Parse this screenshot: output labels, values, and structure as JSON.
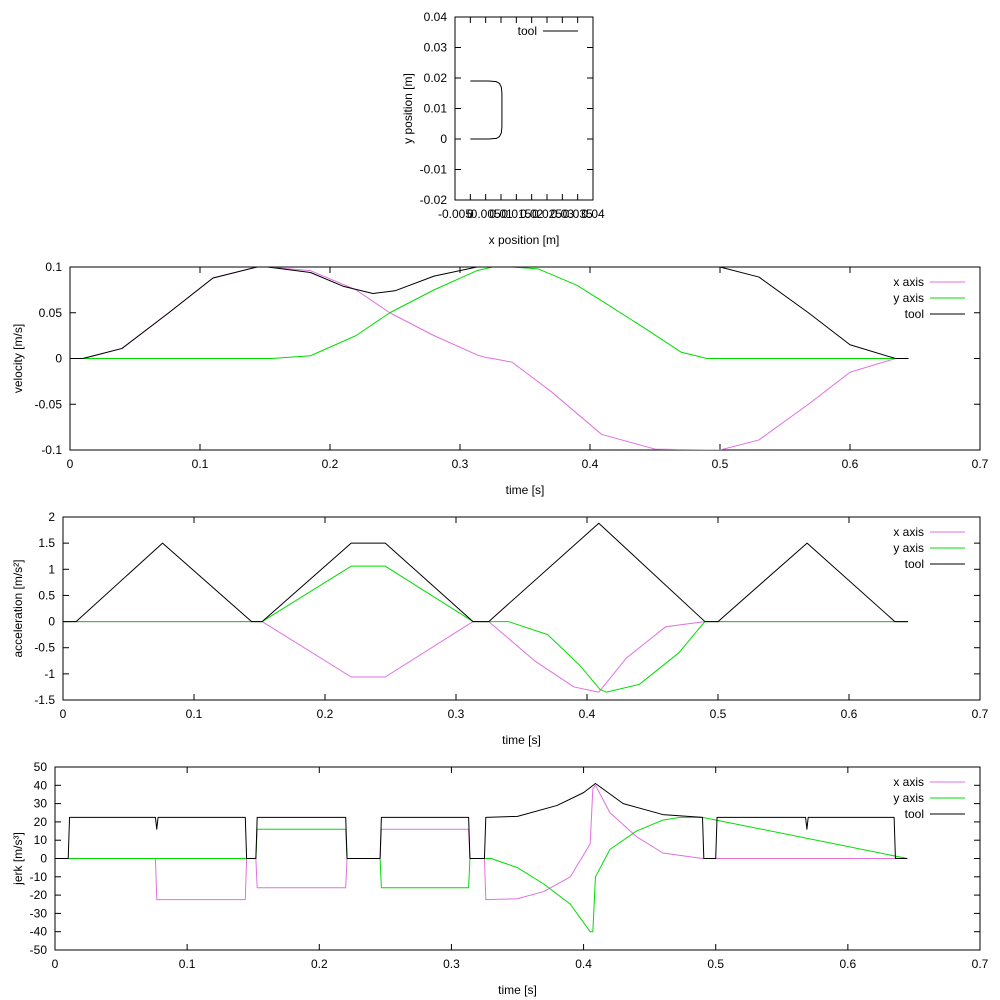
{
  "chart_data": [
    {
      "type": "line",
      "xlabel": "x position [m]",
      "ylabel": "y position [m]",
      "xlim": [
        -0.005,
        0.04
      ],
      "ylim": [
        -0.02,
        0.04
      ],
      "x_ticks": [
        "-0.005",
        "0",
        "0.005",
        "0.01",
        "0.015",
        "0.02",
        "0.025",
        "0.03",
        "0.035",
        "0.04"
      ],
      "y_ticks": [
        "-0.02",
        "-0.01",
        "0",
        "0.01",
        "0.02",
        "0.03",
        "0.04"
      ],
      "legend": "top-right",
      "grid": false,
      "series": [
        {
          "name": "tool",
          "color": "#000000",
          "x": [
            0,
            0.006,
            0.0085,
            0.0095,
            0.0101,
            0.0103,
            0.0103,
            0.0101,
            0.0095,
            0.0085,
            0.006,
            0.0
          ],
          "y": [
            0,
            0,
            0.0002,
            0.0008,
            0.002,
            0.004,
            0.015,
            0.017,
            0.0182,
            0.0188,
            0.019,
            0.019
          ]
        }
      ]
    },
    {
      "type": "line",
      "xlabel": "time [s]",
      "ylabel": "velocity [m/s]",
      "xlim": [
        0,
        0.7
      ],
      "ylim": [
        -0.1,
        0.1
      ],
      "x_ticks": [
        "0",
        "0.1",
        "0.2",
        "0.3",
        "0.4",
        "0.5",
        "0.6",
        "0.7"
      ],
      "y_ticks": [
        "-0.1",
        "-0.05",
        "0",
        "0.05",
        "0.1"
      ],
      "legend": "top-right",
      "grid": false,
      "series": [
        {
          "name": "x axis",
          "color": "#e070e0",
          "x": [
            0,
            0.01,
            0.04,
            0.076,
            0.11,
            0.144,
            0.152,
            0.185,
            0.22,
            0.246,
            0.28,
            0.313,
            0.32,
            0.325,
            0.34,
            0.37,
            0.409,
            0.45,
            0.49,
            0.5,
            0.53,
            0.568,
            0.6,
            0.635,
            0.645
          ],
          "y": [
            0,
            0,
            0.011,
            0.05,
            0.088,
            0.1,
            0.1,
            0.096,
            0.075,
            0.05,
            0.025,
            0.004,
            0.001,
            0,
            -0.004,
            -0.036,
            -0.083,
            -0.099,
            -0.1,
            -0.1,
            -0.089,
            -0.05,
            -0.015,
            0,
            0
          ]
        },
        {
          "name": "y axis",
          "color": "#00dd00",
          "x": [
            0,
            0.15,
            0.155,
            0.185,
            0.22,
            0.246,
            0.28,
            0.313,
            0.325,
            0.34,
            0.36,
            0.39,
            0.409,
            0.44,
            0.47,
            0.49,
            0.645
          ],
          "y": [
            0,
            0,
            0,
            0.003,
            0.025,
            0.05,
            0.075,
            0.096,
            0.1,
            0.1,
            0.098,
            0.08,
            0.063,
            0.035,
            0.007,
            0,
            0
          ]
        },
        {
          "name": "tool",
          "color": "#000000",
          "x": [
            0,
            0.01,
            0.04,
            0.076,
            0.11,
            0.144,
            0.152,
            0.185,
            0.21,
            0.233,
            0.25,
            0.28,
            0.313,
            0.325,
            0.35,
            0.4,
            0.45,
            0.49,
            0.5,
            0.53,
            0.568,
            0.6,
            0.635,
            0.645
          ],
          "y": [
            0,
            0,
            0.011,
            0.05,
            0.088,
            0.1,
            0.1,
            0.094,
            0.079,
            0.071,
            0.074,
            0.09,
            0.1,
            0.1,
            0.1,
            0.1,
            0.1,
            0.1,
            0.1,
            0.089,
            0.05,
            0.015,
            0,
            0
          ]
        }
      ]
    },
    {
      "type": "line",
      "xlabel": "time [s]",
      "ylabel": "acceleration [m/s²]",
      "xlim": [
        0,
        0.7
      ],
      "ylim": [
        -1.5,
        2
      ],
      "x_ticks": [
        "0",
        "0.1",
        "0.2",
        "0.3",
        "0.4",
        "0.5",
        "0.6",
        "0.7"
      ],
      "y_ticks": [
        "-1.5",
        "-1",
        "-0.5",
        "0",
        "0.5",
        "1",
        "1.5",
        "2"
      ],
      "legend": "top-right",
      "grid": false,
      "series": [
        {
          "name": "x axis",
          "color": "#e070e0",
          "x": [
            0,
            0.152,
            0.22,
            0.246,
            0.313,
            0.325,
            0.36,
            0.39,
            0.409,
            0.43,
            0.46,
            0.49,
            0.645
          ],
          "y": [
            0,
            0,
            -1.06,
            -1.06,
            0,
            0,
            -0.75,
            -1.25,
            -1.35,
            -0.7,
            -0.1,
            0,
            0
          ]
        },
        {
          "name": "y axis",
          "color": "#00dd00",
          "x": [
            0,
            0.152,
            0.22,
            0.246,
            0.313,
            0.34,
            0.37,
            0.395,
            0.41,
            0.415,
            0.44,
            0.47,
            0.49,
            0.645
          ],
          "y": [
            0,
            0,
            1.06,
            1.06,
            0,
            0,
            -0.25,
            -0.85,
            -1.3,
            -1.35,
            -1.2,
            -0.6,
            0,
            0
          ]
        },
        {
          "name": "tool",
          "color": "#000000",
          "x": [
            0,
            0.01,
            0.076,
            0.144,
            0.152,
            0.22,
            0.246,
            0.313,
            0.325,
            0.409,
            0.49,
            0.5,
            0.568,
            0.635,
            0.645
          ],
          "y": [
            0,
            0,
            1.5,
            0,
            0,
            1.5,
            1.5,
            0,
            0,
            1.88,
            0,
            0,
            1.5,
            0,
            0
          ]
        }
      ]
    },
    {
      "type": "line",
      "xlabel": "time [s]",
      "ylabel": "jerk [m/s³]",
      "xlim": [
        0,
        0.7
      ],
      "ylim": [
        -50,
        50
      ],
      "x_ticks": [
        "0",
        "0.1",
        "0.2",
        "0.3",
        "0.4",
        "0.5",
        "0.6",
        "0.7"
      ],
      "y_ticks": [
        "-50",
        "-40",
        "-30",
        "-20",
        "-10",
        "0",
        "10",
        "20",
        "30",
        "40",
        "50"
      ],
      "legend": "top-right",
      "grid": false,
      "series": [
        {
          "name": "x axis",
          "color": "#e070e0",
          "x": [
            0,
            0.076,
            0.077,
            0.144,
            0.145,
            0.152,
            0.153,
            0.22,
            0.221,
            0.246,
            0.247,
            0.313,
            0.314,
            0.325,
            0.326,
            0.35,
            0.37,
            0.39,
            0.405,
            0.407,
            0.409,
            0.42,
            0.44,
            0.46,
            0.49,
            0.645
          ],
          "y": [
            0,
            0,
            -22.5,
            -22.5,
            0,
            0,
            -16,
            -16,
            0,
            0,
            16,
            16,
            0,
            0,
            -22.5,
            -22,
            -18,
            -10,
            8,
            38,
            40,
            25,
            12,
            3,
            0,
            0
          ]
        },
        {
          "name": "y axis",
          "color": "#00dd00",
          "x": [
            0,
            0.152,
            0.153,
            0.22,
            0.221,
            0.246,
            0.247,
            0.313,
            0.314,
            0.33,
            0.35,
            0.37,
            0.39,
            0.405,
            0.407,
            0.409,
            0.42,
            0.44,
            0.46,
            0.473,
            0.49,
            0.645
          ],
          "y": [
            0,
            0,
            16,
            16,
            0,
            0,
            -16,
            -16,
            0,
            0,
            -5,
            -14,
            -25,
            -40,
            -40,
            -10,
            5,
            15,
            21,
            22.5,
            22.5,
            0
          ]
        },
        {
          "name": "tool",
          "color": "#000000",
          "x": [
            0,
            0.01,
            0.011,
            0.076,
            0.077,
            0.078,
            0.144,
            0.145,
            0.152,
            0.153,
            0.22,
            0.221,
            0.246,
            0.247,
            0.313,
            0.314,
            0.325,
            0.326,
            0.35,
            0.38,
            0.4,
            0.409,
            0.43,
            0.46,
            0.49,
            0.491,
            0.5,
            0.501,
            0.568,
            0.569,
            0.57,
            0.635,
            0.636,
            0.645
          ],
          "y": [
            0,
            0,
            22.5,
            22.5,
            16,
            22.5,
            22.5,
            0,
            0,
            22.5,
            22.5,
            0,
            0,
            22.5,
            22.5,
            0,
            0,
            22.5,
            23,
            29,
            36,
            41,
            30,
            24,
            22.5,
            0,
            0,
            22.5,
            22.5,
            16,
            22.5,
            22.5,
            0,
            0
          ]
        }
      ]
    }
  ]
}
